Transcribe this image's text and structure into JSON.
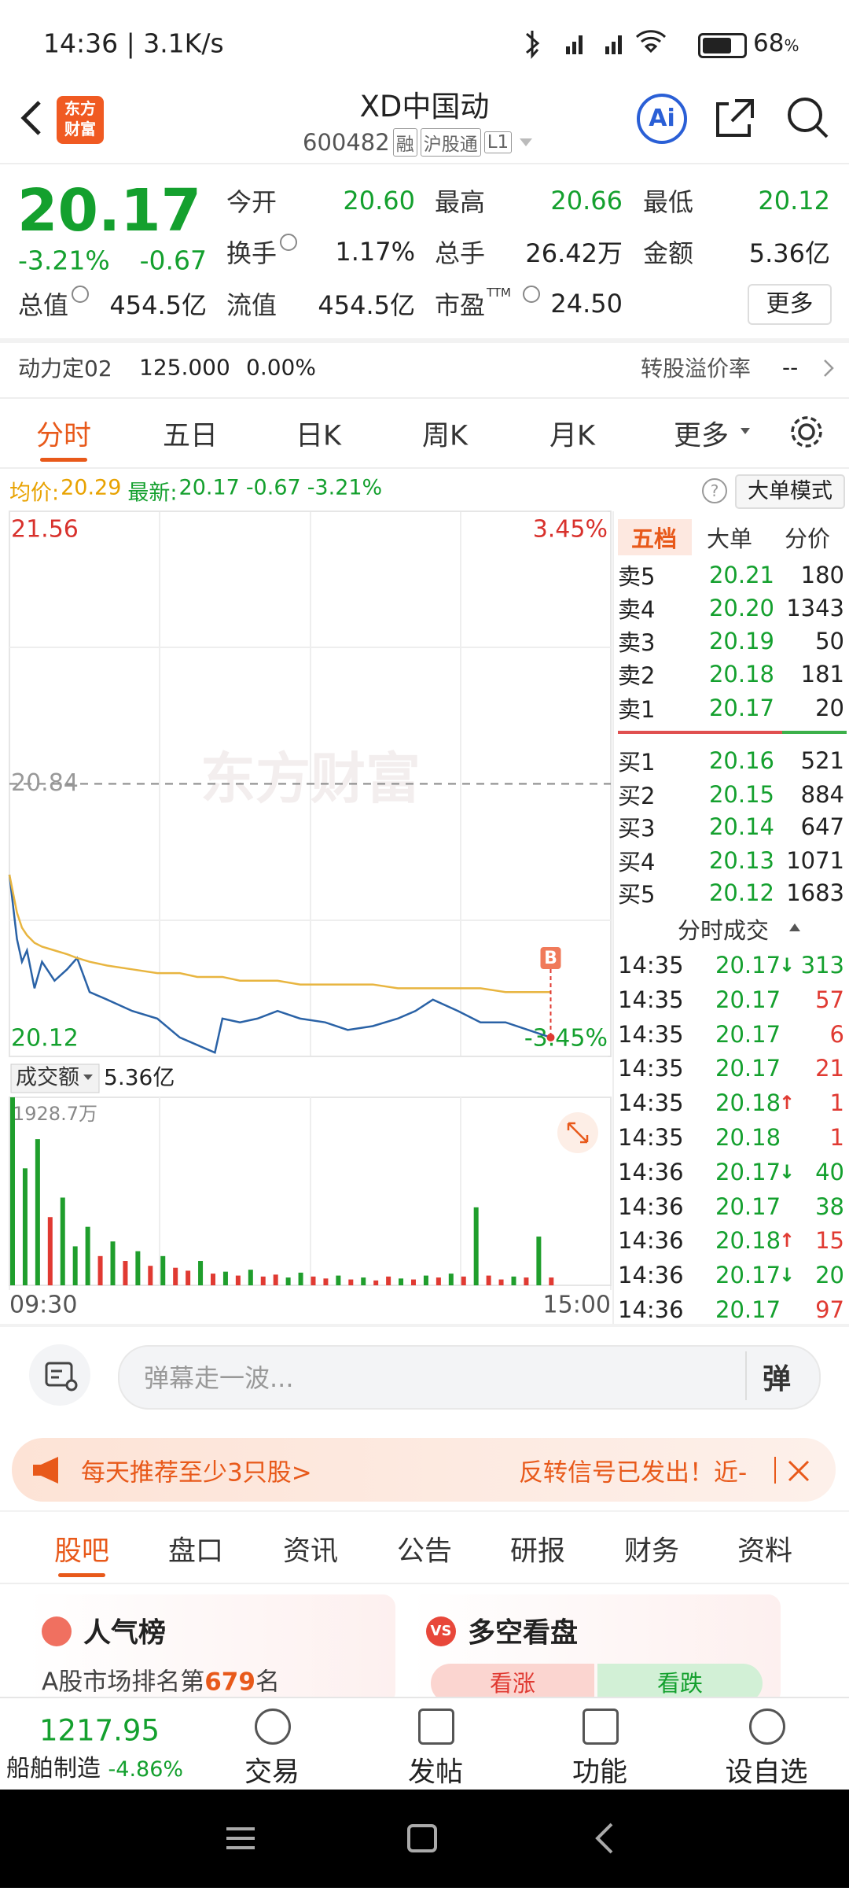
{
  "status_bar": {
    "time": "14:36 | 3.1K/s",
    "battery": "68",
    "battery_unit": "%"
  },
  "header": {
    "logo_lines": [
      "东方",
      "财富"
    ],
    "title": "XD中国动",
    "code": "600482",
    "badges": [
      "融",
      "沪股通",
      "L1"
    ],
    "ai": "Ai"
  },
  "quote": {
    "price": "20.17",
    "change_pct": "-3.21%",
    "change": "-0.67",
    "more": "更多",
    "stats": [
      {
        "label": "今开",
        "value": "20.60",
        "color": "#14a02e"
      },
      {
        "label": "最高",
        "value": "20.66",
        "color": "#14a02e"
      },
      {
        "label": "最低",
        "value": "20.12",
        "color": "#14a02e"
      },
      {
        "label": "换手",
        "value": "1.17%"
      },
      {
        "label": "总手",
        "value": "26.42万"
      },
      {
        "label": "金额",
        "value": "5.36亿"
      },
      {
        "label": "总值",
        "value": "454.5亿"
      },
      {
        "label": "流值",
        "value": "454.5亿"
      },
      {
        "label": "市盈",
        "sup": "TTM",
        "value": "24.50"
      }
    ]
  },
  "convert": {
    "name": "动力定02",
    "price": "125.000",
    "pct": "0.00%",
    "premium_label": "转股溢价率",
    "premium": "--"
  },
  "tabs": [
    "分时",
    "五日",
    "日K",
    "周K",
    "月K",
    "更多"
  ],
  "chart_info": {
    "avg_label": "均价:",
    "avg": "20.29",
    "latest_label": "最新:",
    "latest": "20.17",
    "change": "-0.67",
    "pct": "-3.21%",
    "mode": "大单模式"
  },
  "chart_data": [
    {
      "type": "line",
      "watermark": "东方财富",
      "marker": "B",
      "x": [
        0,
        3,
        5,
        7,
        10,
        13,
        18,
        23,
        27,
        32,
        39,
        49,
        59,
        68,
        75,
        82,
        85,
        92,
        99,
        107,
        116,
        126,
        135,
        145,
        155,
        162,
        169,
        179,
        188,
        198,
        207,
        216
      ],
      "xlim": [
        0,
        240
      ],
      "xticks": [
        {
          "value": 0,
          "label": "09:30"
        },
        {
          "value": 240,
          "label": "15:00"
        }
      ],
      "ylim": [
        20.12,
        21.56
      ],
      "yticks": [
        21.56,
        20.84,
        20.12
      ],
      "y2lim": [
        -3.45,
        3.45
      ],
      "y2ticks": [
        {
          "value": 3.45,
          "label": "3.45%"
        },
        {
          "value": -3.45,
          "label": "-3.45%"
        }
      ],
      "series": [
        {
          "color": "#2a62a6",
          "values": [
            20.6,
            20.43,
            20.37,
            20.4,
            20.3,
            20.37,
            20.32,
            20.35,
            20.38,
            20.29,
            20.27,
            20.24,
            20.22,
            20.17,
            20.15,
            20.13,
            20.22,
            20.21,
            20.22,
            20.24,
            20.22,
            20.21,
            20.19,
            20.2,
            20.22,
            20.24,
            20.27,
            20.24,
            20.21,
            20.21,
            20.19,
            20.17
          ]
        },
        {
          "color": "#e8b540",
          "values": [
            20.6,
            20.5,
            20.46,
            20.44,
            20.42,
            20.41,
            20.4,
            20.39,
            20.38,
            20.37,
            20.36,
            20.35,
            20.34,
            20.34,
            20.33,
            20.33,
            20.33,
            20.32,
            20.32,
            20.32,
            20.31,
            20.31,
            20.31,
            20.31,
            20.3,
            20.3,
            20.3,
            20.3,
            20.3,
            20.29,
            20.29,
            20.29
          ]
        }
      ]
    },
    {
      "type": "bar",
      "label": "成交额",
      "total": "5.36亿",
      "xlim": [
        0,
        240
      ],
      "ylim": [
        0,
        1928.7
      ],
      "yticks": [
        {
          "value": 1928.7,
          "label": "1928.7万"
        }
      ],
      "x": [
        0,
        5,
        10,
        15,
        20,
        25,
        30,
        35,
        40,
        45,
        50,
        55,
        60,
        65,
        70,
        75,
        80,
        85,
        90,
        95,
        100,
        105,
        110,
        115,
        120,
        125,
        130,
        135,
        140,
        145,
        150,
        155,
        160,
        165,
        170,
        175,
        180,
        185,
        190,
        195,
        200,
        205,
        210,
        215
      ],
      "values": [
        1928.7,
        1200,
        1500,
        700,
        900,
        400,
        600,
        300,
        450,
        250,
        350,
        200,
        300,
        180,
        150,
        250,
        120,
        140,
        100,
        160,
        90,
        110,
        80,
        130,
        90,
        70,
        100,
        60,
        80,
        50,
        90,
        70,
        60,
        100,
        80,
        120,
        90,
        800,
        100,
        60,
        90,
        80,
        500,
        80
      ],
      "colors": [
        "#1f9e2c",
        "#1f9e2c",
        "#1f9e2c",
        "#e03a32",
        "#1f9e2c",
        "#1f9e2c",
        "#1f9e2c",
        "#e03a32",
        "#1f9e2c",
        "#e03a32",
        "#1f9e2c",
        "#e03a32",
        "#1f9e2c",
        "#e03a32",
        "#e03a32",
        "#1f9e2c",
        "#e03a32",
        "#1f9e2c",
        "#e03a32",
        "#1f9e2c",
        "#e03a32",
        "#e03a32",
        "#1f9e2c",
        "#1f9e2c",
        "#e03a32",
        "#e03a32",
        "#1f9e2c",
        "#e03a32",
        "#1f9e2c",
        "#e03a32",
        "#e03a32",
        "#1f9e2c",
        "#e03a32",
        "#1f9e2c",
        "#e03a32",
        "#1f9e2c",
        "#e03a32",
        "#1f9e2c",
        "#e03a32",
        "#e03a32",
        "#1f9e2c",
        "#e03a32",
        "#1f9e2c",
        "#e03a32"
      ]
    }
  ],
  "order_book": {
    "tabs": [
      "五档",
      "大单",
      "分价"
    ],
    "asks": [
      {
        "label": "卖5",
        "price": "20.21",
        "vol": "180"
      },
      {
        "label": "卖4",
        "price": "20.20",
        "vol": "1343"
      },
      {
        "label": "卖3",
        "price": "20.19",
        "vol": "50"
      },
      {
        "label": "卖2",
        "price": "20.18",
        "vol": "181"
      },
      {
        "label": "卖1",
        "price": "20.17",
        "vol": "20"
      }
    ],
    "bids": [
      {
        "label": "买1",
        "price": "20.16",
        "vol": "521"
      },
      {
        "label": "买2",
        "price": "20.15",
        "vol": "884"
      },
      {
        "label": "买3",
        "price": "20.14",
        "vol": "647"
      },
      {
        "label": "买4",
        "price": "20.13",
        "vol": "1071"
      },
      {
        "label": "买5",
        "price": "20.12",
        "vol": "1683"
      }
    ],
    "trades_title": "分时成交",
    "trades": [
      {
        "time": "14:35",
        "price": "20.17",
        "dir": "↓",
        "vol": "313",
        "color": "#14a02e"
      },
      {
        "time": "14:35",
        "price": "20.17",
        "vol": "57",
        "color": "#e03a32"
      },
      {
        "time": "14:35",
        "price": "20.17",
        "vol": "6",
        "color": "#e03a32"
      },
      {
        "time": "14:35",
        "price": "20.17",
        "vol": "21",
        "color": "#e03a32"
      },
      {
        "time": "14:35",
        "price": "20.18",
        "dir": "↑",
        "vol": "1",
        "color": "#e03a32"
      },
      {
        "time": "14:35",
        "price": "20.18",
        "vol": "1",
        "color": "#e03a32"
      },
      {
        "time": "14:36",
        "price": "20.17",
        "dir": "↓",
        "vol": "40",
        "color": "#14a02e"
      },
      {
        "time": "14:36",
        "price": "20.17",
        "vol": "38",
        "color": "#14a02e"
      },
      {
        "time": "14:36",
        "price": "20.18",
        "dir": "↑",
        "vol": "15",
        "color": "#e03a32"
      },
      {
        "time": "14:36",
        "price": "20.17",
        "dir": "↓",
        "vol": "20",
        "color": "#14a02e"
      },
      {
        "time": "14:36",
        "price": "20.17",
        "vol": "97",
        "color": "#e03a32"
      }
    ]
  },
  "comment": {
    "placeholder": "弹幕走一波...",
    "button": "弹"
  },
  "banner": {
    "left": "每天推荐至少3只股>",
    "right": "反转信号已发出！近-"
  },
  "section_tabs": [
    "股吧",
    "盘口",
    "资讯",
    "公告",
    "研报",
    "财务",
    "资料"
  ],
  "cards": {
    "rank": {
      "title": "人气榜",
      "prefix": "A股市场排名第",
      "rank": "679",
      "suffix": "名"
    },
    "vote": {
      "icon": "VS",
      "title": "多空看盘",
      "up": "看涨",
      "down": "看跌"
    }
  },
  "bottom": {
    "index": "1217.95",
    "sector": "船舶制造",
    "pct": "-4.86%",
    "nav": [
      "交易",
      "发帖",
      "功能",
      "设自选"
    ]
  }
}
